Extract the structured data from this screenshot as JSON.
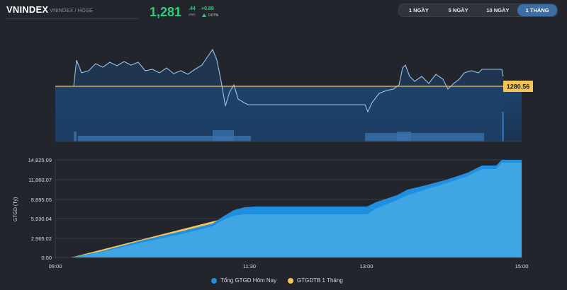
{
  "header": {
    "title": "VNINDEX",
    "subtitle": "VNINDEX / HOSE",
    "price_main": "1,281",
    "price_dec": ".44",
    "price_unit": "VND",
    "change": "+0.88",
    "change_pct": "0.07%"
  },
  "ranges": [
    {
      "label": "1 NGÀY",
      "active": false
    },
    {
      "label": "5 NGÀY",
      "active": false
    },
    {
      "label": "10 NGÀY",
      "active": false
    },
    {
      "label": "1 THÁNG",
      "active": true
    }
  ],
  "colors": {
    "accent_green": "#2fd07a",
    "line_blue": "#9cc3e6",
    "reference_line": "#f4c45a",
    "area_today": "#1f8fdf",
    "area_today_light": "#3fa6e3",
    "area_month": "#f7c45c"
  },
  "chart_data": [
    {
      "type": "line",
      "reference_label": "1280.56",
      "reference_value": 1280.56,
      "note_series": "intraday index line with volume bars; no printed y-axis"
    },
    {
      "type": "area",
      "ylabel": "GTGD (Tỷ)",
      "ylim": [
        0,
        14825.09
      ],
      "yticks": [
        "14,825.09",
        "11,860.07",
        "8,895.05",
        "5,930.04",
        "2,965.02",
        "0.00"
      ],
      "xticks": [
        "09:00",
        "11:30",
        "13:00",
        "15:00"
      ],
      "series": [
        {
          "name": "Tổng GTGD Hôm Nay"
        },
        {
          "name": "GTGDTB 1 Tháng"
        }
      ]
    }
  ],
  "legend": [
    {
      "label": "Tổng GTGD Hôm Nay",
      "color": "#1f8fdf"
    },
    {
      "label": "GTGDTB 1 Tháng",
      "color": "#f7c45c"
    }
  ]
}
